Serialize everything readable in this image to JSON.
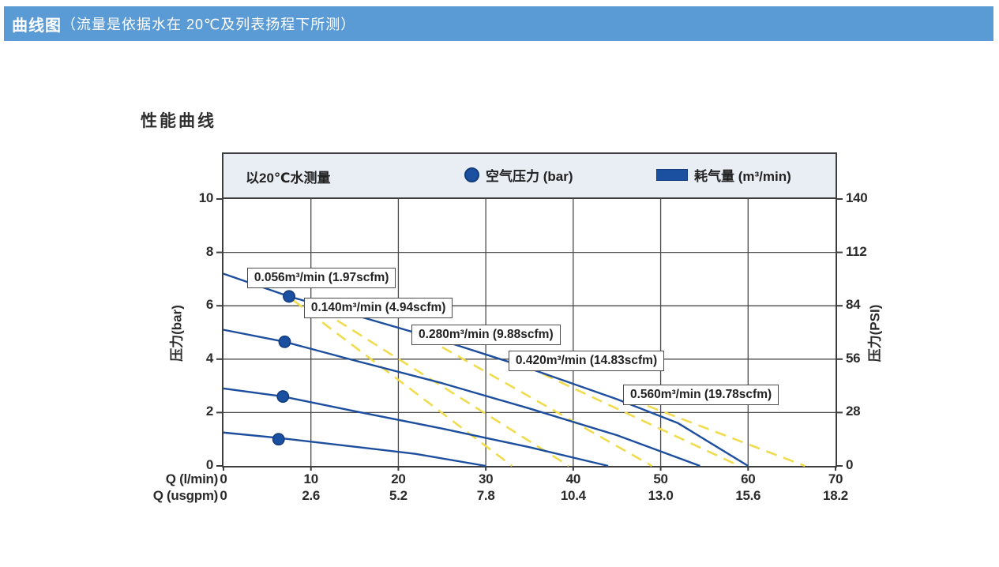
{
  "header": {
    "title_bold": "曲线图",
    "title_rest": "（流量是依据水在 20℃及列表扬程下所测）"
  },
  "chart": {
    "title": "性能曲线",
    "legend": {
      "note": "以20℃水测量",
      "pressure_label": "空气压力 (bar)",
      "consumption_label": "耗气量 (m³/min)"
    }
  },
  "colors": {
    "header_blue": "#5b9bd5",
    "curve_blue": "#1d4e9e",
    "dot_blue": "#1b4fa0",
    "consumption_yellow": "#f0dc4e",
    "legend_band_bg": "#e9edf4",
    "grid_gray": "#4b4b4b"
  },
  "chart_data": {
    "type": "line",
    "title": "性能曲线",
    "grid": true,
    "legend_position": "top",
    "x_axis": {
      "label": "Q (l/min)",
      "range": [
        0,
        70
      ],
      "ticks": [
        0,
        10,
        20,
        30,
        40,
        50,
        60,
        70
      ]
    },
    "x_axis_secondary": {
      "label": "Q (usgpm)",
      "range": [
        0,
        18.2
      ],
      "ticks": [
        "0",
        "2.6",
        "5.2",
        "7.8",
        "10.4",
        "13.0",
        "15.6",
        "18.2"
      ]
    },
    "y_axis": {
      "label": "压力(bar)",
      "range": [
        0,
        10
      ],
      "ticks": [
        10,
        8,
        6,
        4,
        2,
        0
      ]
    },
    "y_axis_secondary": {
      "label": "压力(PSI)",
      "range": [
        0,
        140
      ],
      "ticks": [
        140,
        112,
        84,
        56,
        28,
        0
      ]
    },
    "series": [
      {
        "name": "pressure-curve-1",
        "points": [
          [
            0,
            7.2
          ],
          [
            7.5,
            6.35
          ],
          [
            15,
            5.65
          ],
          [
            25,
            4.7
          ],
          [
            35,
            3.65
          ],
          [
            45,
            2.5
          ],
          [
            52,
            1.6
          ],
          [
            60,
            0
          ]
        ]
      },
      {
        "name": "pressure-curve-2",
        "points": [
          [
            0,
            5.1
          ],
          [
            7,
            4.65
          ],
          [
            15,
            3.95
          ],
          [
            25,
            3.1
          ],
          [
            35,
            2.15
          ],
          [
            45,
            1.15
          ],
          [
            54.5,
            0
          ]
        ]
      },
      {
        "name": "pressure-curve-3",
        "points": [
          [
            0,
            2.9
          ],
          [
            6.8,
            2.6
          ],
          [
            15,
            2.05
          ],
          [
            25,
            1.4
          ],
          [
            35,
            0.7
          ],
          [
            44,
            0
          ]
        ]
      },
      {
        "name": "pressure-curve-4",
        "points": [
          [
            0,
            1.25
          ],
          [
            6.3,
            1.05
          ],
          [
            15,
            0.72
          ],
          [
            22,
            0.45
          ],
          [
            30,
            0
          ]
        ]
      }
    ],
    "air_pressure_dots": [
      [
        7.5,
        6.35
      ],
      [
        7.0,
        4.65
      ],
      [
        6.8,
        2.6
      ],
      [
        6.3,
        1.0
      ]
    ],
    "air_consumption_lines": [
      {
        "label": "0.056m³/min (1.97scfm)",
        "points": [
          [
            8,
            6.2
          ],
          [
            33,
            0
          ]
        ]
      },
      {
        "label": "0.140m³/min (4.94scfm)",
        "points": [
          [
            13,
            5.45
          ],
          [
            39.5,
            0
          ]
        ]
      },
      {
        "label": "0.280m³/min (9.88scfm)",
        "points": [
          [
            25,
            4.45
          ],
          [
            49,
            0
          ]
        ]
      },
      {
        "label": "0.420m³/min (14.83scfm)",
        "points": [
          [
            36.5,
            3.45
          ],
          [
            59,
            0
          ]
        ]
      },
      {
        "label": "0.560m³/min (19.78scfm)",
        "points": [
          [
            48.5,
            2.25
          ],
          [
            66.5,
            0
          ]
        ]
      }
    ],
    "annotations": [
      {
        "text": "0.056m³/min (1.97scfm)",
        "x": 2.7,
        "y": 7.43
      },
      {
        "text": "0.140m³/min (4.94scfm)",
        "x": 9.2,
        "y": 6.3
      },
      {
        "text": "0.280m³/min (9.88scfm)",
        "x": 21.5,
        "y": 5.3
      },
      {
        "text": "0.420m³/min (14.83scfm)",
        "x": 32.6,
        "y": 4.32
      },
      {
        "text": "0.560m³/min (19.78scfm)",
        "x": 45.7,
        "y": 3.05
      }
    ]
  }
}
